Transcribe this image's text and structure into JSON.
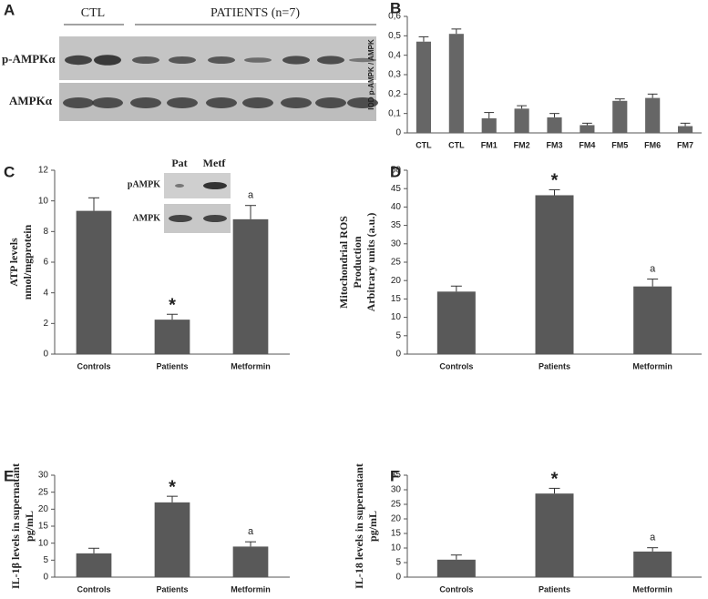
{
  "blot": {
    "panel": "A",
    "groups": [
      "CTL",
      "PATIENTS (n=7)"
    ],
    "rows": [
      "p-AMPKα",
      "AMPKα"
    ]
  },
  "inset": {
    "lanes": [
      "Pat",
      "Metf"
    ],
    "rows": [
      "pAMPK",
      "AMPK"
    ]
  },
  "chart_data": [
    {
      "type": "bar",
      "panel": "B",
      "ylabel": [
        "IOD p-AMPK / AMPK"
      ],
      "categories": [
        "CTL",
        "CTL",
        "FM1",
        "FM2",
        "FM3",
        "FM4",
        "FM5",
        "FM6",
        "FM7"
      ],
      "values": [
        0.47,
        0.51,
        0.075,
        0.125,
        0.08,
        0.04,
        0.165,
        0.18,
        0.035
      ],
      "errors": [
        0.025,
        0.025,
        0.03,
        0.015,
        0.02,
        0.01,
        0.01,
        0.02,
        0.015
      ],
      "color": "#666666",
      "ylim": [
        0,
        0.6
      ],
      "yticks": [
        0,
        {
          "value": 0.1,
          "label": "0,1"
        },
        {
          "value": 0.2,
          "label": "0,2"
        },
        {
          "value": 0.3,
          "label": "0,3"
        },
        {
          "value": 0.4,
          "label": "0,4"
        },
        {
          "value": 0.5,
          "label": "0,5"
        },
        {
          "value": 0.6,
          "label": "0,6"
        }
      ]
    },
    {
      "type": "bar",
      "panel": "C",
      "ylabel": [
        "ATP levels",
        "nmol/mgprotein"
      ],
      "categories": [
        "Controls",
        "Patients",
        "Metformin"
      ],
      "values": [
        9.35,
        2.25,
        8.8
      ],
      "errors": [
        0.85,
        0.35,
        0.9
      ],
      "markers": [
        null,
        "*",
        "a"
      ],
      "color": "#595959",
      "ylim": [
        0,
        12
      ],
      "yticks": [
        0,
        2,
        4,
        6,
        8,
        10,
        12
      ]
    },
    {
      "type": "bar",
      "panel": "D",
      "ylabel": [
        "Mitochondrial ROS",
        "Production",
        "Arbitrary  units (a.u.)"
      ],
      "categories": [
        "Controls",
        "Patients",
        "Metformin"
      ],
      "values": [
        17,
        43.2,
        18.4
      ],
      "errors": [
        1.5,
        1.5,
        2
      ],
      "markers": [
        null,
        "*",
        "a"
      ],
      "color": "#595959",
      "ylim": [
        0,
        50
      ],
      "yticks": [
        0,
        5,
        10,
        15,
        20,
        25,
        30,
        35,
        40,
        45,
        50
      ]
    },
    {
      "type": "bar",
      "panel": "E",
      "ylabel": [
        "IL-1β levels in supernatant",
        "pg/mL"
      ],
      "categories": [
        "Controls",
        "Patients",
        "Metformin"
      ],
      "values": [
        7,
        22,
        9
      ],
      "errors": [
        1.5,
        1.8,
        1.4
      ],
      "markers": [
        null,
        "*",
        "a"
      ],
      "color": "#595959",
      "ylim": [
        0,
        30
      ],
      "yticks": [
        0,
        5,
        10,
        15,
        20,
        25,
        30
      ]
    },
    {
      "type": "bar",
      "panel": "F",
      "ylabel": [
        "IL-18 levels in supernatant",
        "pg/mL"
      ],
      "categories": [
        "Controls",
        "Patients",
        "Metformin"
      ],
      "values": [
        6,
        28.7,
        8.8
      ],
      "errors": [
        1.6,
        1.8,
        1.3
      ],
      "markers": [
        null,
        "*",
        "a"
      ],
      "color": "#595959",
      "ylim": [
        0,
        35
      ],
      "yticks": [
        0,
        5,
        10,
        15,
        20,
        25,
        30,
        35
      ]
    }
  ]
}
